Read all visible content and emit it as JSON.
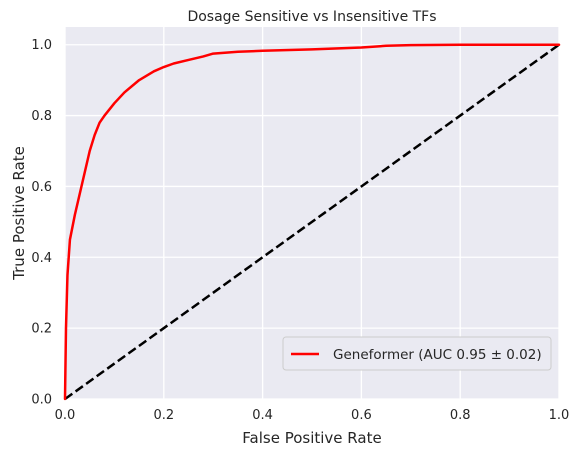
{
  "chart_data": {
    "type": "line",
    "title": "Dosage Sensitive vs Insensitive TFs",
    "xlabel": "False Positive Rate",
    "ylabel": "True Positive Rate",
    "xlim": [
      0,
      1
    ],
    "ylim": [
      0,
      1.05
    ],
    "xticks": [
      0,
      0.2,
      0.4,
      0.6,
      0.8,
      1.0
    ],
    "xtick_labels": [
      "0.0",
      "0.2",
      "0.4",
      "0.6",
      "0.8",
      "1.0"
    ],
    "yticks": [
      0,
      0.2,
      0.4,
      0.6,
      0.8,
      1.0
    ],
    "ytick_labels": [
      "0.0",
      "0.2",
      "0.4",
      "0.6",
      "0.8",
      "1.0"
    ],
    "grid": true,
    "legend_position": "lower-right",
    "series": [
      {
        "name": "Geneformer (AUC 0.95 ± 0.02)",
        "color": "#ff0000",
        "style": "solid",
        "x": [
          0.0,
          0.002,
          0.005,
          0.01,
          0.02,
          0.03,
          0.04,
          0.05,
          0.06,
          0.07,
          0.08,
          0.1,
          0.12,
          0.15,
          0.18,
          0.2,
          0.22,
          0.25,
          0.28,
          0.3,
          0.35,
          0.4,
          0.5,
          0.6,
          0.65,
          0.7,
          0.8,
          0.9,
          1.0
        ],
        "y": [
          0.0,
          0.2,
          0.35,
          0.45,
          0.52,
          0.58,
          0.64,
          0.7,
          0.745,
          0.78,
          0.8,
          0.835,
          0.865,
          0.9,
          0.925,
          0.937,
          0.947,
          0.957,
          0.967,
          0.975,
          0.98,
          0.983,
          0.987,
          0.992,
          0.997,
          0.999,
          1.0,
          1.0,
          1.0
        ]
      },
      {
        "name": "",
        "color": "#000000",
        "style": "dashed",
        "x": [
          0,
          1
        ],
        "y": [
          0,
          1
        ]
      }
    ]
  }
}
